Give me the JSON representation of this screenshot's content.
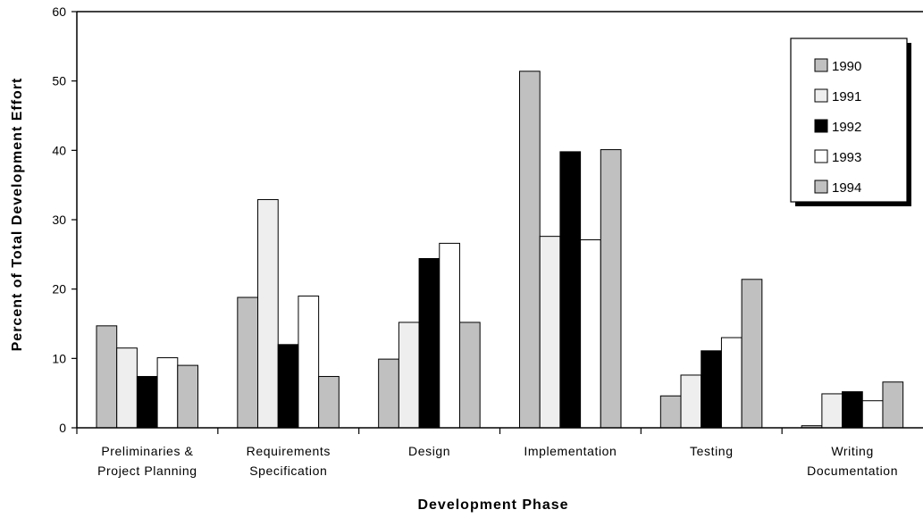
{
  "chart_data": {
    "type": "bar",
    "title": "",
    "xlabel": "Development Phase",
    "ylabel": "Percent of Total Development Effort",
    "ylim": [
      0,
      60
    ],
    "yticks": [
      0,
      10,
      20,
      30,
      40,
      50,
      60
    ],
    "grid": false,
    "legend_position": "top-right",
    "categories": [
      [
        "Preliminaries &",
        "Project Planning"
      ],
      [
        "Requirements",
        "Specification"
      ],
      [
        "Design"
      ],
      [
        "Implementation"
      ],
      [
        "Testing"
      ],
      [
        "Writing",
        "Documentation"
      ]
    ],
    "series": [
      {
        "name": "1990",
        "color": "#c0c0c0",
        "values": [
          14.7,
          18.8,
          9.9,
          51.4,
          4.6,
          0.3
        ]
      },
      {
        "name": "1991",
        "color": "#eeeeee",
        "values": [
          11.5,
          32.9,
          15.2,
          27.6,
          7.6,
          4.9
        ]
      },
      {
        "name": "1992",
        "color": "#000000",
        "values": [
          7.4,
          12.0,
          24.4,
          39.8,
          11.1,
          5.2
        ]
      },
      {
        "name": "1993",
        "color": "#ffffff",
        "values": [
          10.1,
          19.0,
          26.6,
          27.1,
          13.0,
          3.9
        ]
      },
      {
        "name": "1994",
        "color": "#c0c0c0",
        "values": [
          9.0,
          7.4,
          15.2,
          40.1,
          21.4,
          6.6
        ]
      }
    ]
  }
}
